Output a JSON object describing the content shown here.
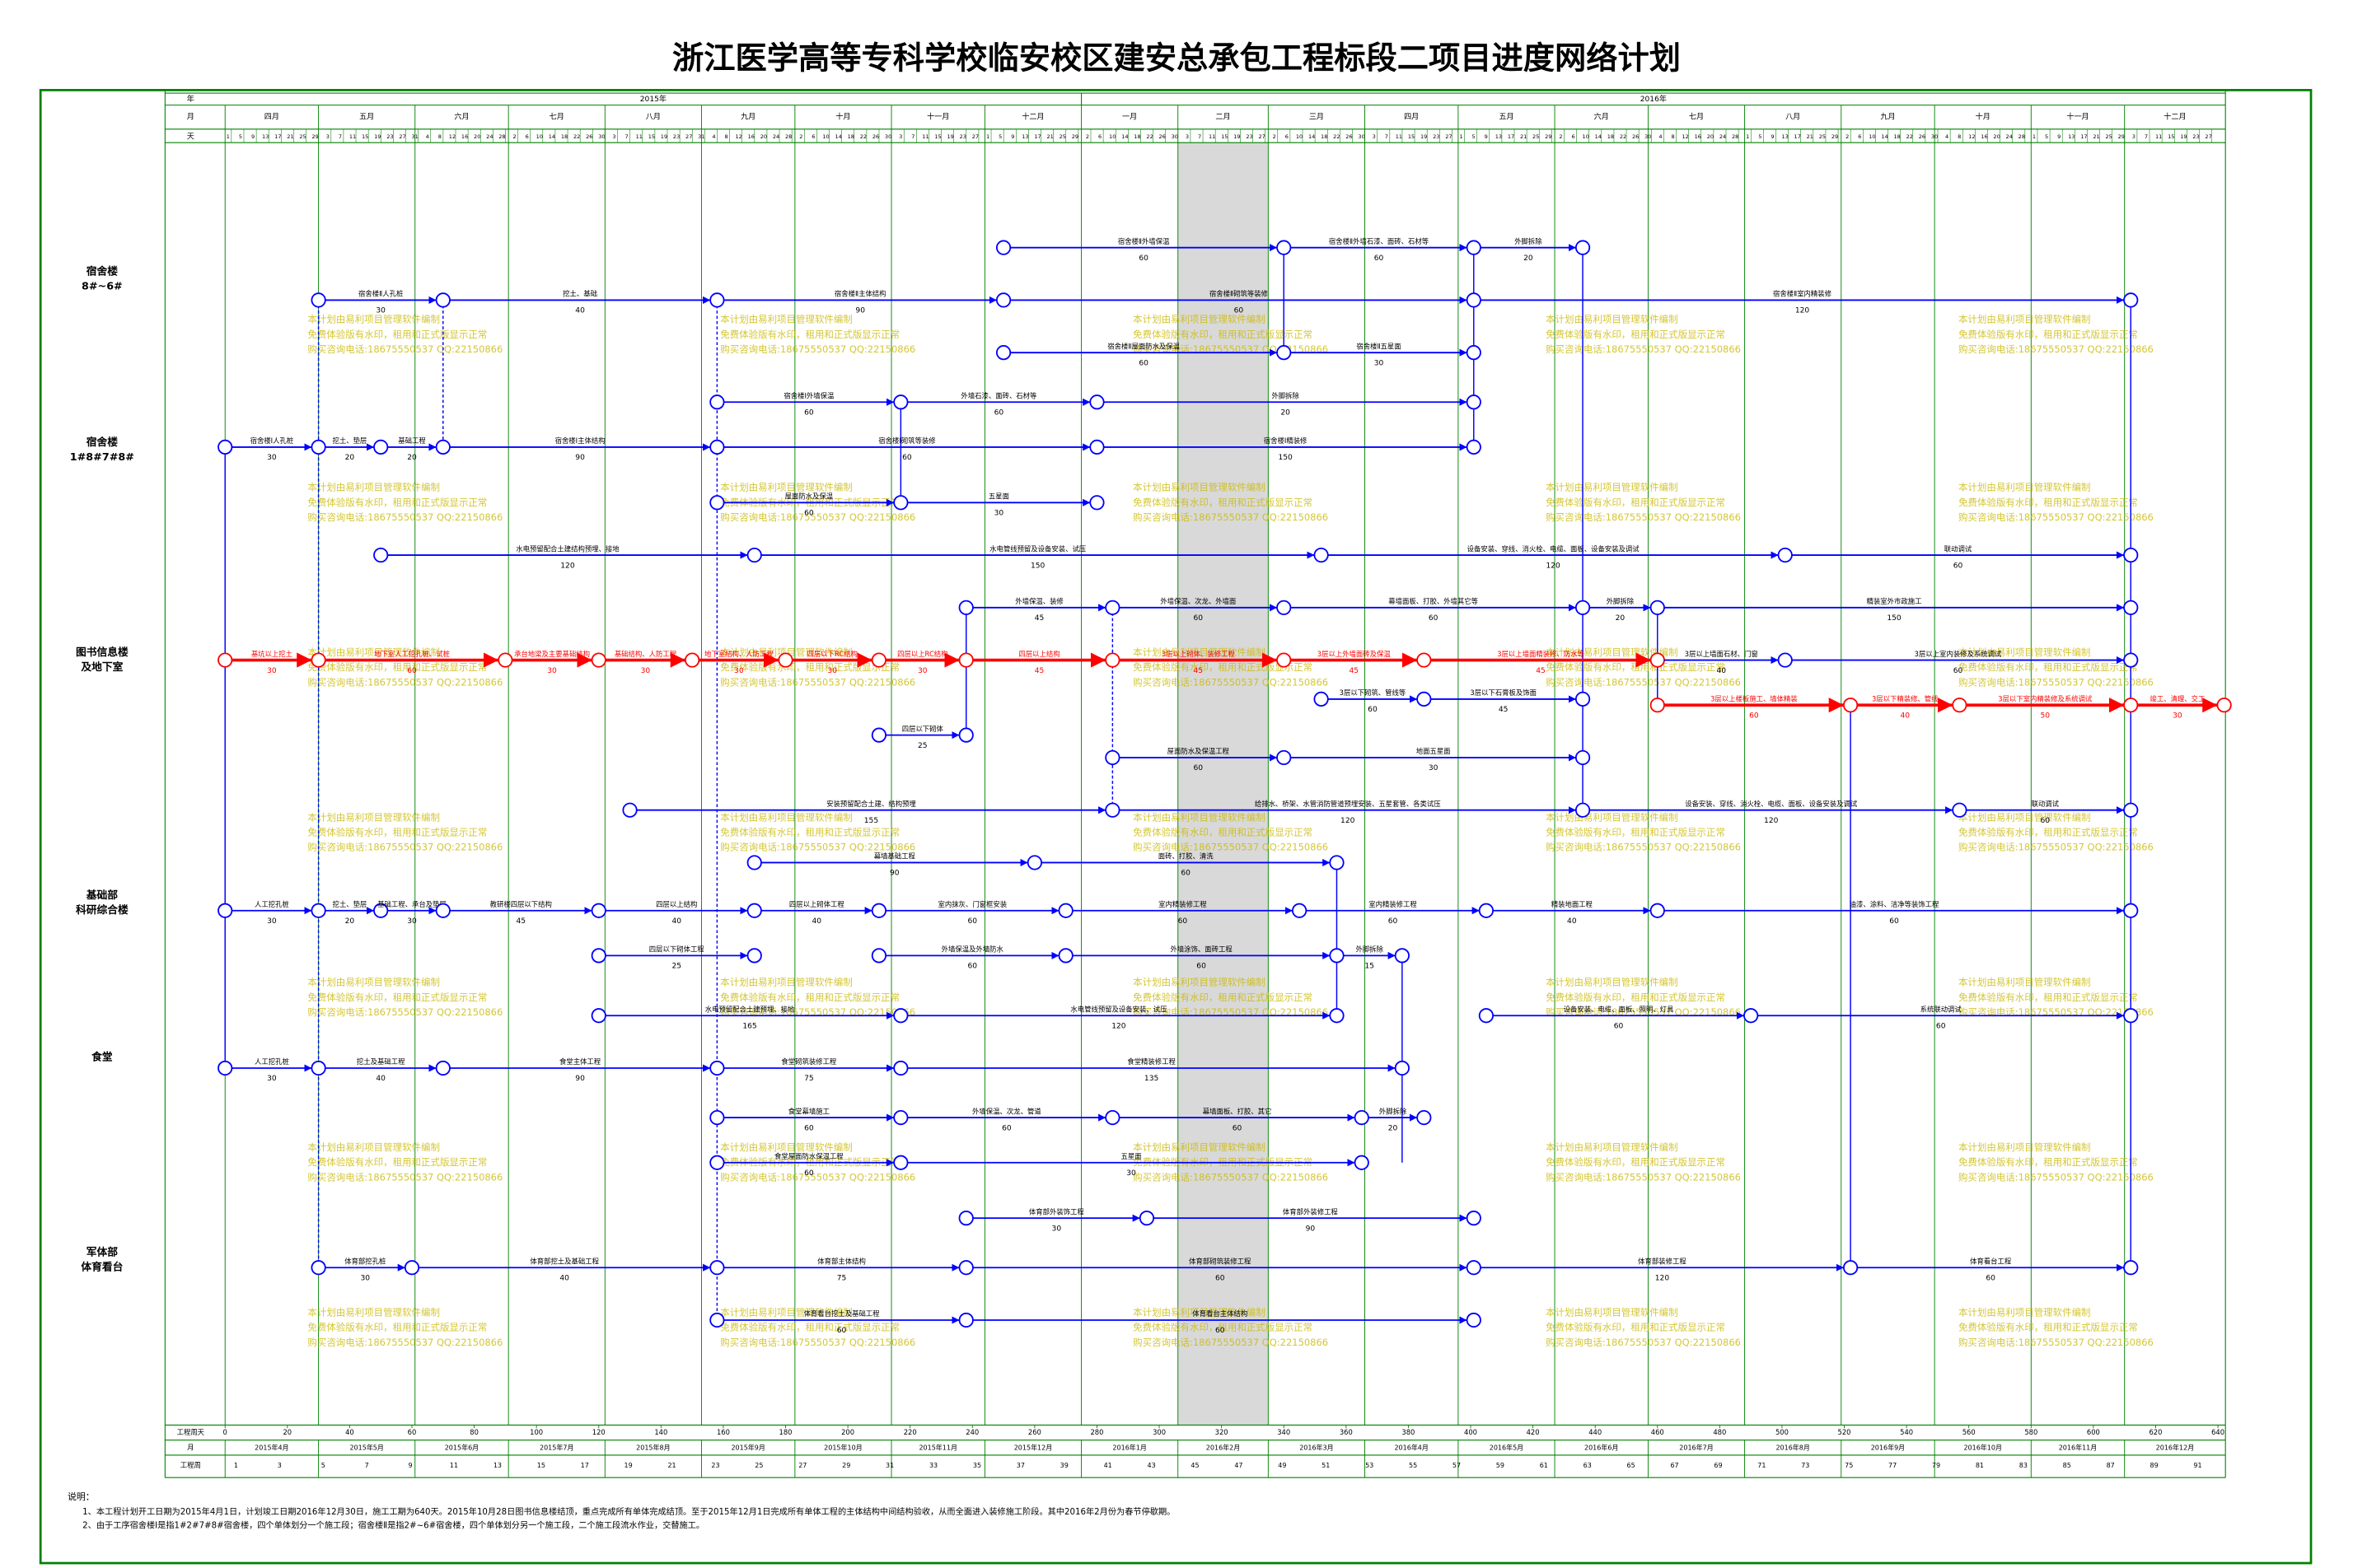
{
  "title": "浙江医学高等专科学校临安校区建安总承包工程标段二项目进度网络计划",
  "header": {
    "year_label": "年",
    "years": [
      "2015年",
      "2016年"
    ],
    "month_label": "月",
    "months": [
      "四月",
      "五月",
      "六月",
      "七月",
      "八月",
      "九月",
      "十月",
      "十一月",
      "十二月",
      "一月",
      "二月",
      "三月",
      "四月",
      "五月",
      "六月",
      "七月",
      "八月",
      "九月",
      "十月",
      "十一月",
      "十二月"
    ],
    "day_label": "天",
    "days": [
      [
        1,
        5,
        9,
        13,
        17,
        21,
        25,
        29
      ],
      [
        3,
        7,
        11,
        15,
        19,
        23,
        27,
        31
      ],
      [
        4,
        8,
        12,
        16,
        20,
        24,
        28
      ],
      [
        2,
        6,
        10,
        14,
        18,
        22,
        26,
        30
      ],
      [
        3,
        7,
        11,
        15,
        19,
        23,
        27,
        31
      ],
      [
        4,
        8,
        12,
        16,
        20,
        24,
        28
      ],
      [
        2,
        6,
        10,
        14,
        18,
        22,
        26,
        30
      ],
      [
        3,
        7,
        11,
        15,
        19,
        23,
        27
      ],
      [
        1,
        5,
        9,
        13,
        17,
        21,
        25,
        29
      ],
      [
        2,
        6,
        10,
        14,
        18,
        22,
        26,
        30
      ],
      [
        3,
        7,
        11,
        15,
        19,
        23,
        27
      ],
      [
        2,
        6,
        10,
        14,
        18,
        22,
        26,
        30
      ],
      [
        3,
        7,
        11,
        15,
        19,
        23,
        27
      ],
      [
        1,
        5,
        9,
        13,
        17,
        21,
        25,
        29
      ],
      [
        2,
        6,
        10,
        14,
        18,
        22,
        26,
        30
      ],
      [
        4,
        8,
        12,
        16,
        20,
        24,
        28
      ],
      [
        1,
        5,
        9,
        13,
        17,
        21,
        25,
        29
      ],
      [
        2,
        6,
        10,
        14,
        18,
        22,
        26,
        30
      ],
      [
        4,
        8,
        12,
        16,
        20,
        24,
        28
      ],
      [
        1,
        5,
        9,
        13,
        17,
        21,
        25,
        29
      ],
      [
        3,
        7,
        11,
        15,
        19,
        23,
        27
      ]
    ]
  },
  "sections": [
    {
      "label": [
        "宿舍楼",
        "8#~6#"
      ]
    },
    {
      "label": [
        "宿舍楼",
        "1#8#7#8#"
      ]
    },
    {
      "label": [
        "图书信息楼",
        "及地下室"
      ]
    },
    {
      "label": [
        "基础部",
        "科研综合楼"
      ]
    },
    {
      "label": [
        "食堂"
      ]
    },
    {
      "label": [
        "军体部",
        "体育看台"
      ]
    }
  ],
  "network": {
    "lanes": [
      {
        "activities": [
          {
            "name": "宿舍楼Ⅱ外墙保温",
            "duration": 60,
            "start": 250,
            "end": 340
          },
          {
            "name": "宿舍楼Ⅱ外墙石漆、面砖、石材等",
            "duration": 60,
            "start": 340,
            "end": 401
          },
          {
            "name": "外脚拆除",
            "duration": 20,
            "start": 401,
            "end": 436
          }
        ]
      },
      {
        "activities": [
          {
            "name": "宿舍楼Ⅱ人孔桩",
            "duration": 30,
            "start": 30,
            "end": 70
          },
          {
            "name": "挖土、基础",
            "duration": 40,
            "start": 70,
            "end": 158
          },
          {
            "name": "宿舍楼Ⅱ主体结构",
            "duration": 90,
            "start": 158,
            "end": 250
          },
          {
            "name": "宿舍楼Ⅱ砌筑等装修",
            "duration": 60,
            "start": 250,
            "end": 401
          },
          {
            "name": "宿舍楼Ⅱ室内精装修",
            "duration": 120,
            "start": 401,
            "end": 612
          }
        ]
      },
      {
        "activities": [
          {
            "name": "宿舍楼Ⅱ屋面防水及保温",
            "duration": 60,
            "start": 250,
            "end": 340
          },
          {
            "name": "宿舍楼Ⅱ五星面",
            "duration": 30,
            "start": 340,
            "end": 401
          }
        ]
      },
      {
        "activities": [
          {
            "name": "宿舍楼Ⅰ外墙保温",
            "duration": 60,
            "start": 158,
            "end": 217
          },
          {
            "name": "外墙石漆、面砖、石材等",
            "duration": 60,
            "start": 217,
            "end": 280
          },
          {
            "name": "外脚拆除",
            "duration": 20,
            "start": 280,
            "end": 401
          }
        ]
      },
      {
        "activities": [
          {
            "name": "宿舍楼Ⅰ人孔桩",
            "duration": 30,
            "start": 0,
            "end": 30
          },
          {
            "name": "挖土、垫层",
            "duration": 20,
            "start": 30,
            "end": 50
          },
          {
            "name": "基础工程",
            "duration": 20,
            "start": 50,
            "end": 70
          },
          {
            "name": "宿舍楼Ⅰ主体结构",
            "duration": 90,
            "start": 70,
            "end": 158
          },
          {
            "name": "宿舍楼Ⅰ砌筑等装修",
            "duration": 60,
            "start": 158,
            "end": 280
          },
          {
            "name": "宿舍楼Ⅰ精装修",
            "duration": 150,
            "start": 280,
            "end": 401
          }
        ]
      },
      {
        "activities": [
          {
            "name": "屋面防水及保温",
            "duration": 60,
            "start": 158,
            "end": 217
          },
          {
            "name": "五星面",
            "duration": 30,
            "start": 217,
            "end": 280
          }
        ]
      },
      {
        "activities": [
          {
            "name": "水电预留配合土建结构预埋、接地",
            "duration": 120,
            "start": 50,
            "end": 170
          },
          {
            "name": "水电管线预留及设备安装、试压",
            "duration": 150,
            "start": 170,
            "end": 352
          },
          {
            "name": "设备安装、穿线、消火栓、电缆、面板、设备安装及调试",
            "duration": 120,
            "start": 352,
            "end": 501
          },
          {
            "name": "联动调试",
            "duration": 60,
            "start": 501,
            "end": 612
          }
        ]
      },
      {
        "activities": [
          {
            "name": "外墙保温、装修",
            "duration": 45,
            "start": 238,
            "end": 285
          },
          {
            "name": "外墙保温、次龙、外墙面",
            "duration": 60,
            "start": 285,
            "end": 340
          },
          {
            "name": "幕墙面板、打胶、外墙其它等",
            "duration": 60,
            "start": 340,
            "end": 436
          },
          {
            "name": "外脚拆除",
            "duration": 20,
            "start": 436,
            "end": 460
          },
          {
            "name": "精装室外市政施工",
            "duration": 150,
            "start": 460,
            "end": 612
          }
        ]
      },
      {
        "activities": [
          {
            "name": "基坑以上挖土",
            "duration": 30,
            "start": 0,
            "end": 30,
            "critical": true
          },
          {
            "name": "地下室人工挖孔桩、试桩",
            "duration": 60,
            "start": 30,
            "end": 90,
            "critical": true
          },
          {
            "name": "承台地梁及主要基础结构",
            "duration": 30,
            "start": 90,
            "end": 120,
            "critical": true
          },
          {
            "name": "基础结构、人防工程",
            "duration": 30,
            "start": 120,
            "end": 150,
            "critical": true
          },
          {
            "name": "地下室结构、人防工程",
            "duration": 30,
            "start": 150,
            "end": 180,
            "critical": true
          },
          {
            "name": "四层以下RC结构",
            "duration": 30,
            "start": 180,
            "end": 210,
            "critical": true
          },
          {
            "name": "四层以上RC结构",
            "duration": 30,
            "start": 210,
            "end": 238,
            "critical": true
          },
          {
            "name": "四层以上结构",
            "duration": 45,
            "start": 238,
            "end": 285,
            "critical": true
          },
          {
            "name": "3层以上砌体、装修工程",
            "duration": 45,
            "start": 285,
            "end": 340,
            "critical": true
          },
          {
            "name": "3层以上外墙面砖及保温",
            "duration": 45,
            "start": 340,
            "end": 385,
            "critical": true
          },
          {
            "name": "3层以上墙面精装修、防水等",
            "duration": 45,
            "start": 385,
            "end": 460,
            "critical": true
          },
          {
            "name": "3层以上墙面石材、门窗",
            "duration": 40,
            "start": 460,
            "end": 501
          },
          {
            "name": "3层以上室内装修及系统调试",
            "duration": 60,
            "start": 501,
            "end": 612
          }
        ]
      },
      {
        "activities": [
          {
            "name": "3层以上楼板施工、墙体精装",
            "duration": 60,
            "start": 460,
            "end": 522,
            "critical": true
          },
          {
            "name": "3层以下精装修、管线",
            "duration": 40,
            "start": 522,
            "end": 557,
            "critical": true
          },
          {
            "name": "3层以下室内精装修及系统调试",
            "duration": 50,
            "start": 557,
            "end": 612,
            "critical": true
          },
          {
            "name": "竣工、清理、交工",
            "duration": 30,
            "start": 612,
            "end": 642,
            "critical": true
          }
        ]
      },
      {
        "activities": [
          {
            "name": "3层以下砌筑、管线等",
            "duration": 60,
            "start": 352,
            "end": 385
          },
          {
            "name": "3层以下石膏板及饰面",
            "duration": 45,
            "start": 385,
            "end": 436
          }
        ]
      },
      {
        "activities": [
          {
            "name": "四层以下砌体",
            "duration": 25,
            "start": 210,
            "end": 238
          }
        ]
      },
      {
        "activities": [
          {
            "name": "屋面防水及保温工程",
            "duration": 60,
            "start": 285,
            "end": 340
          },
          {
            "name": "地面五星面",
            "duration": 30,
            "start": 340,
            "end": 436
          }
        ]
      },
      {
        "activities": [
          {
            "name": "安装预留配合土建、结构预埋",
            "duration": 155,
            "start": 130,
            "end": 285
          },
          {
            "name": "给排水、桥架、水管消防管道预埋安装、五星套管、各类试压",
            "duration": 120,
            "start": 285,
            "end": 436
          },
          {
            "name": "设备安装、穿线、消火栓、电缆、面板、设备安装及调试",
            "duration": 120,
            "start": 436,
            "end": 557
          },
          {
            "name": "联动调试",
            "duration": 60,
            "start": 557,
            "end": 612
          }
        ]
      },
      {
        "activities": [
          {
            "name": "幕墙基础工程",
            "duration": 90,
            "start": 170,
            "end": 260
          },
          {
            "name": "面砖、打胶、清洗",
            "duration": 60,
            "start": 260,
            "end": 357
          }
        ]
      },
      {
        "activities": [
          {
            "name": "人工挖孔桩",
            "duration": 30,
            "start": 0,
            "end": 30
          },
          {
            "name": "挖土、垫层",
            "duration": 20,
            "start": 30,
            "end": 50
          },
          {
            "name": "基础工程、承台及垫层",
            "duration": 30,
            "start": 50,
            "end": 70
          },
          {
            "name": "教研楼四层以下结构",
            "duration": 45,
            "start": 70,
            "end": 120
          },
          {
            "name": "四层以上结构",
            "duration": 40,
            "start": 120,
            "end": 170
          },
          {
            "name": "四层以上砌体工程",
            "duration": 40,
            "start": 170,
            "end": 210
          },
          {
            "name": "室内抹灰、门窗框安装",
            "duration": 60,
            "start": 210,
            "end": 270
          },
          {
            "name": "室内精装修工程",
            "duration": 60,
            "start": 270,
            "end": 345
          },
          {
            "name": "室内精装修工程",
            "duration": 60,
            "start": 345,
            "end": 405
          },
          {
            "name": "精装地面工程",
            "duration": 40,
            "start": 405,
            "end": 460
          },
          {
            "name": "油漆、涂料、洁净等装饰工程",
            "duration": 60,
            "start": 460,
            "end": 612
          }
        ]
      },
      {
        "activities": [
          {
            "name": "四层以下砌体工程",
            "duration": 25,
            "start": 120,
            "end": 170
          },
          {
            "name": "外墙保温及外墙防水",
            "duration": 60,
            "start": 210,
            "end": 270
          },
          {
            "name": "外墙涂饰、面砖工程",
            "duration": 60,
            "start": 270,
            "end": 357
          },
          {
            "name": "外脚拆除",
            "duration": 15,
            "start": 357,
            "end": 378
          }
        ]
      },
      {
        "activities": [
          {
            "name": "水电预留配合土建预埋、接地",
            "duration": 165,
            "start": 120,
            "end": 217
          },
          {
            "name": "水电管线预留及设备安装、试压",
            "duration": 120,
            "start": 217,
            "end": 357
          },
          {
            "name": "设备安装、电缆、面板、照明、灯具",
            "duration": 60,
            "start": 405,
            "end": 490
          },
          {
            "name": "系统联动调试",
            "duration": 60,
            "start": 490,
            "end": 612
          }
        ]
      },
      {
        "activities": [
          {
            "name": "人工挖孔桩",
            "duration": 30,
            "start": 0,
            "end": 30
          },
          {
            "name": "挖土及基础工程",
            "duration": 40,
            "start": 30,
            "end": 70
          },
          {
            "name": "食堂主体工程",
            "duration": 90,
            "start": 70,
            "end": 158
          },
          {
            "name": "食堂砌筑装修工程",
            "duration": 75,
            "start": 158,
            "end": 217
          },
          {
            "name": "食堂精装修工程",
            "duration": 135,
            "start": 217,
            "end": 378
          }
        ]
      },
      {
        "activities": [
          {
            "name": "食堂幕墙施工",
            "duration": 60,
            "start": 158,
            "end": 217
          },
          {
            "name": "外墙保温、次龙、管道",
            "duration": 60,
            "start": 217,
            "end": 285
          },
          {
            "name": "幕墙面板、打胶、其它",
            "duration": 60,
            "start": 285,
            "end": 365
          },
          {
            "name": "外脚拆除",
            "duration": 20,
            "start": 365,
            "end": 385
          }
        ]
      },
      {
        "activities": [
          {
            "name": "食堂屋面防水保温工程",
            "duration": 60,
            "start": 158,
            "end": 217
          },
          {
            "name": "五星面",
            "duration": 30,
            "start": 217,
            "end": 365
          }
        ]
      },
      {
        "activities": [
          {
            "name": "体育部外装饰工程",
            "duration": 30,
            "start": 238,
            "end": 296
          },
          {
            "name": "体育部外装修工程",
            "duration": 90,
            "start": 296,
            "end": 401
          }
        ]
      },
      {
        "activities": [
          {
            "name": "体育部挖孔桩",
            "duration": 30,
            "start": 30,
            "end": 60
          },
          {
            "name": "体育部挖土及基础工程",
            "duration": 40,
            "start": 60,
            "end": 158
          },
          {
            "name": "体育部主体结构",
            "duration": 75,
            "start": 158,
            "end": 238
          },
          {
            "name": "体育部砌筑装修工程",
            "duration": 60,
            "start": 238,
            "end": 401
          },
          {
            "name": "体育部装修工程",
            "duration": 120,
            "start": 401,
            "end": 522
          },
          {
            "name": "体育看台工程",
            "duration": 60,
            "start": 522,
            "end": 612
          }
        ]
      },
      {
        "activities": [
          {
            "name": "体育看台挖土及基础工程",
            "duration": 60,
            "start": 158,
            "end": 238
          },
          {
            "name": "体育看台主体结构",
            "duration": 60,
            "start": 238,
            "end": 401
          }
        ]
      }
    ]
  },
  "footer": {
    "scale_label": "工程周天",
    "scale": [
      0,
      20,
      40,
      60,
      80,
      100,
      120,
      140,
      160,
      180,
      200,
      220,
      240,
      260,
      280,
      300,
      320,
      340,
      360,
      380,
      400,
      420,
      440,
      460,
      480,
      500,
      520,
      540,
      560,
      580,
      600,
      620,
      640
    ],
    "month_label": "月",
    "months": [
      "2015年4月",
      "2015年5月",
      "2015年6月",
      "2015年7月",
      "2015年8月",
      "2015年9月",
      "2015年10月",
      "2015年11月",
      "2015年12月",
      "2016年1月",
      "2016年2月",
      "2016年3月",
      "2016年4月",
      "2016年5月",
      "2016年6月",
      "2016年7月",
      "2016年8月",
      "2016年9月",
      "2016年10月",
      "2016年11月",
      "2016年12月"
    ],
    "week_label": "工程周",
    "weeks": [
      1,
      3,
      5,
      7,
      9,
      11,
      13,
      15,
      17,
      19,
      21,
      23,
      25,
      27,
      29,
      31,
      33,
      35,
      37,
      39,
      41,
      43,
      45,
      47,
      49,
      51,
      53,
      55,
      57,
      59,
      61,
      63,
      65,
      67,
      69,
      71,
      73,
      75,
      77,
      79,
      81,
      83,
      85,
      87,
      89,
      91
    ]
  },
  "notes": {
    "heading": "说明：",
    "lines": [
      "1、本工程计划开工日期为2015年4月1日，计划竣工日期2016年12月30日，施工工期为640天。2015年10月28日图书信息楼结顶，重点完成所有单体完成结顶。至于2015年12月1日完成所有单体工程的主体结构中间结构验收，从而全面进入装修施工阶段。其中2016年2月份为春节停歇期。",
      "2、由于工序宿舍楼Ⅰ是指1#2#7#8#宿舍楼，四个单体划分一个施工段；宿舍楼Ⅱ是指2#~6#宿舍楼，四个单体划分另一个施工段，二个施工段流水作业，交替施工。"
    ]
  },
  "watermark": [
    "本计划由易利项目管理软件编制",
    "免费体验版有水印，租用和正式版显示正常",
    "购买咨询电话:18675550537 QQ:22150866"
  ]
}
